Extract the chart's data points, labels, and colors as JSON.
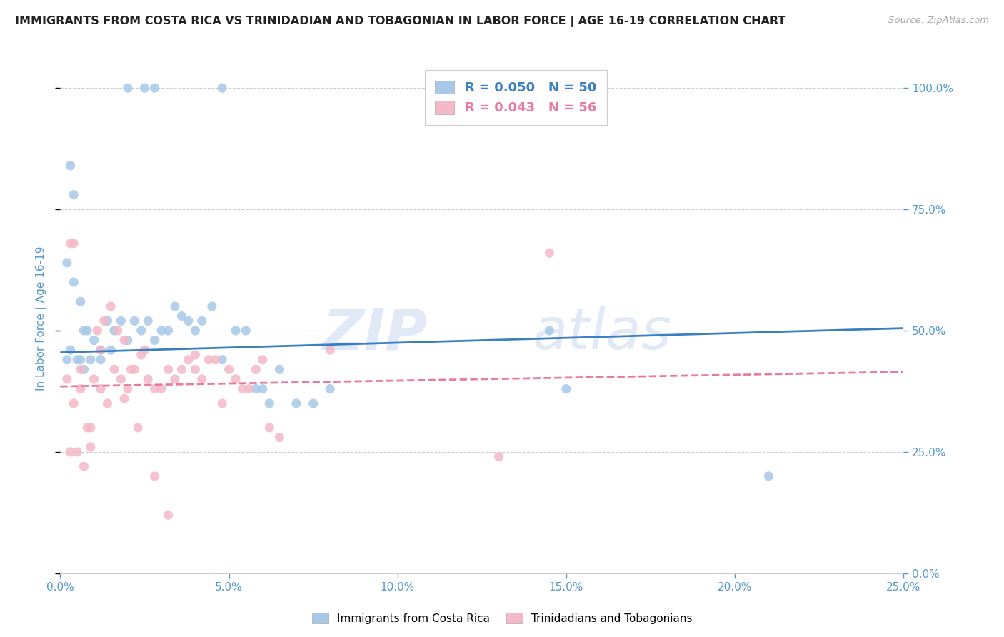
{
  "title": "IMMIGRANTS FROM COSTA RICA VS TRINIDADIAN AND TOBAGONIAN IN LABOR FORCE | AGE 16-19 CORRELATION CHART",
  "source": "Source: ZipAtlas.com",
  "ylabel": "In Labor Force | Age 16-19",
  "xlim": [
    0.0,
    0.25
  ],
  "ylim": [
    0.0,
    1.05
  ],
  "xticks": [
    0.0,
    0.05,
    0.1,
    0.15,
    0.2,
    0.25
  ],
  "yticks": [
    0.0,
    0.25,
    0.5,
    0.75,
    1.0
  ],
  "blue_color": "#a8c8e8",
  "pink_color": "#f4b8c8",
  "blue_line_color": "#3a7fc1",
  "pink_line_color": "#e87aa0",
  "axis_label_color": "#5599cc",
  "grid_color": "#ccccdd",
  "title_color": "#222222",
  "legend_R1": "R = 0.050",
  "legend_N1": "N = 50",
  "legend_R2": "R = 0.043",
  "legend_N2": "N = 56",
  "legend_label1": "Immigrants from Costa Rica",
  "legend_label2": "Trinidadians and Tobagonians",
  "watermark_zip": "ZIP",
  "watermark_atlas": "atlas",
  "blue_scatter_x": [
    0.02,
    0.025,
    0.028,
    0.048,
    0.004,
    0.006,
    0.007,
    0.008,
    0.01,
    0.012,
    0.014,
    0.016,
    0.018,
    0.02,
    0.022,
    0.024,
    0.026,
    0.028,
    0.03,
    0.032,
    0.034,
    0.036,
    0.038,
    0.04,
    0.042,
    0.045,
    0.048,
    0.052,
    0.055,
    0.058,
    0.06,
    0.062,
    0.065,
    0.07,
    0.075,
    0.08,
    0.002,
    0.003,
    0.005,
    0.006,
    0.007,
    0.009,
    0.012,
    0.015,
    0.145,
    0.15,
    0.21,
    0.002,
    0.003,
    0.004
  ],
  "blue_scatter_y": [
    1.0,
    1.0,
    1.0,
    1.0,
    0.6,
    0.56,
    0.5,
    0.5,
    0.48,
    0.46,
    0.52,
    0.5,
    0.52,
    0.48,
    0.52,
    0.5,
    0.52,
    0.48,
    0.5,
    0.5,
    0.55,
    0.53,
    0.52,
    0.5,
    0.52,
    0.55,
    0.44,
    0.5,
    0.5,
    0.38,
    0.38,
    0.35,
    0.42,
    0.35,
    0.35,
    0.38,
    0.44,
    0.46,
    0.44,
    0.44,
    0.42,
    0.44,
    0.44,
    0.46,
    0.5,
    0.38,
    0.2,
    0.64,
    0.84,
    0.78
  ],
  "pink_scatter_x": [
    0.002,
    0.004,
    0.006,
    0.008,
    0.01,
    0.012,
    0.014,
    0.016,
    0.018,
    0.02,
    0.022,
    0.024,
    0.026,
    0.028,
    0.03,
    0.032,
    0.034,
    0.036,
    0.038,
    0.04,
    0.042,
    0.044,
    0.046,
    0.048,
    0.05,
    0.052,
    0.054,
    0.056,
    0.058,
    0.06,
    0.062,
    0.065,
    0.003,
    0.005,
    0.007,
    0.009,
    0.011,
    0.013,
    0.015,
    0.017,
    0.019,
    0.021,
    0.023,
    0.003,
    0.006,
    0.009,
    0.019,
    0.025,
    0.028,
    0.032,
    0.13,
    0.145,
    0.04,
    0.08,
    0.004,
    0.012
  ],
  "pink_scatter_y": [
    0.4,
    0.35,
    0.38,
    0.3,
    0.4,
    0.38,
    0.35,
    0.42,
    0.4,
    0.38,
    0.42,
    0.45,
    0.4,
    0.38,
    0.38,
    0.42,
    0.4,
    0.42,
    0.44,
    0.42,
    0.4,
    0.44,
    0.44,
    0.35,
    0.42,
    0.4,
    0.38,
    0.38,
    0.42,
    0.44,
    0.3,
    0.28,
    0.25,
    0.25,
    0.22,
    0.3,
    0.5,
    0.52,
    0.55,
    0.5,
    0.48,
    0.42,
    0.3,
    0.68,
    0.42,
    0.26,
    0.36,
    0.46,
    0.2,
    0.12,
    0.24,
    0.66,
    0.45,
    0.46,
    0.68,
    0.46
  ],
  "blue_line_x": [
    0.0,
    0.25
  ],
  "blue_line_y": [
    0.455,
    0.505
  ],
  "pink_line_x": [
    0.0,
    0.25
  ],
  "pink_line_y": [
    0.385,
    0.415
  ]
}
